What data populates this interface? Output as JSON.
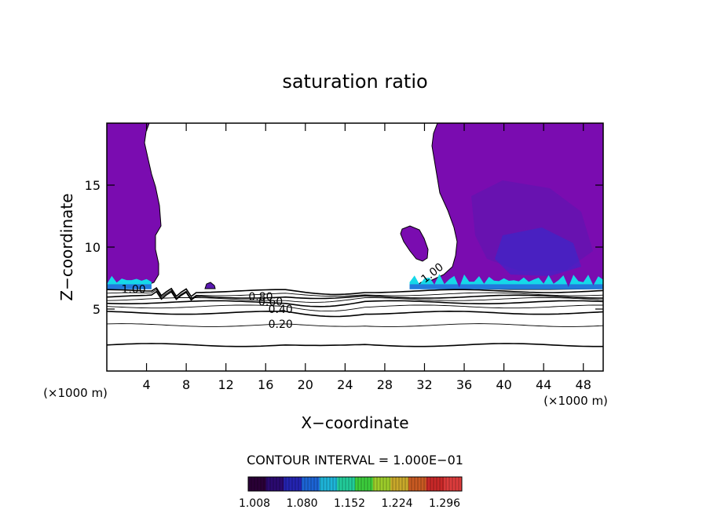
{
  "chart_data": {
    "type": "heatmap",
    "title": "saturation ratio",
    "xlabel": "X−coordinate",
    "ylabel": "Z−coordinate",
    "x_unit_left": "(×1000 m)",
    "x_unit_right": "(×1000 m)",
    "xlim": [
      0,
      50
    ],
    "ylim": [
      0,
      20
    ],
    "x_ticks": [
      4,
      8,
      12,
      16,
      20,
      24,
      28,
      32,
      36,
      40,
      44,
      48
    ],
    "y_ticks": [
      5,
      10,
      15
    ],
    "contour_levels": [
      0.2,
      0.3,
      0.4,
      0.5,
      0.6,
      0.7,
      0.8,
      0.9,
      1.0
    ],
    "contour_labels": [
      {
        "text": "0.20",
        "x": 17.5,
        "z": 3.8
      },
      {
        "text": "0.40",
        "x": 17.5,
        "z": 5.0
      },
      {
        "text": "0.60",
        "x": 16.5,
        "z": 5.6
      },
      {
        "text": "0.80",
        "x": 15.5,
        "z": 6.0
      },
      {
        "text": "1.00",
        "x": 2.7,
        "z": 6.6
      },
      {
        "text": "1.00",
        "x": 33.0,
        "z": 8.0
      }
    ],
    "contour_interval_text": "CONTOUR INTERVAL = 1.000E−01",
    "colorbar_ticks": [
      "1.008",
      "1.080",
      "1.152",
      "1.224",
      "1.296"
    ],
    "colorbar_colors": [
      "#2a0036",
      "#2b0a70",
      "#2424b0",
      "#1c64d4",
      "#1eb4d8",
      "#22cc9a",
      "#3ccc3c",
      "#9ccc2a",
      "#c8a82a",
      "#c85a22",
      "#c82828",
      "#dc3c3c"
    ],
    "field_colors": {
      "supersat_low": "#7a0cb0",
      "supersat_mid": "#5a18b0",
      "supersat_high": "#2f2cd0",
      "cloud_base": "#16d8e8"
    }
  }
}
